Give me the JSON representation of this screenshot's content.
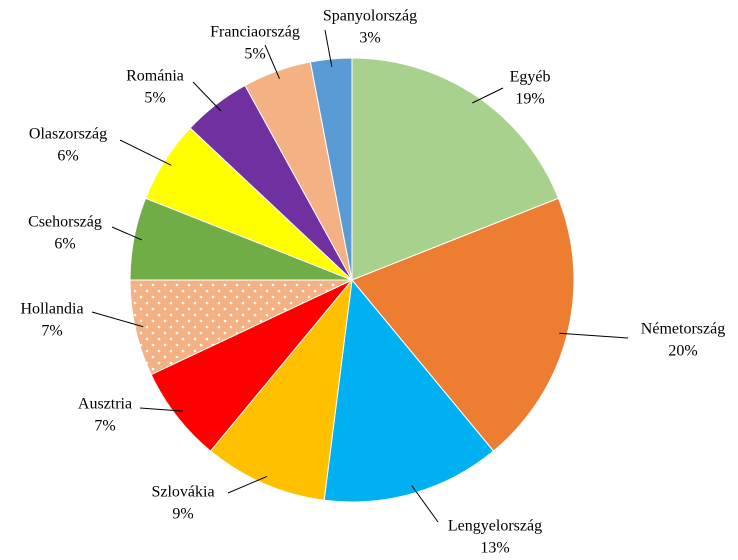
{
  "chart_data": {
    "type": "pie",
    "categories": [
      "Egyéb",
      "Németország",
      "Lengyelország",
      "Szlovákia",
      "Ausztria",
      "Hollandia",
      "Csehország",
      "Olaszország",
      "Románia",
      "Franciaország",
      "Spanyolország"
    ],
    "values": [
      19,
      20,
      13,
      9,
      7,
      7,
      6,
      6,
      5,
      5,
      3
    ],
    "value_labels": [
      "19%",
      "20%",
      "13%",
      "9%",
      "7%",
      "7%",
      "6%",
      "6%",
      "5%",
      "5%",
      "3%"
    ],
    "colors": [
      "#a9d18e",
      "#ed7d31",
      "#00b0f0",
      "#ffc000",
      "#ff0000",
      "#f4b183",
      "#70ad47",
      "#ffff00",
      "#7030a0",
      "#f4b183",
      "#5b9bd5"
    ],
    "patterns": [
      null,
      null,
      null,
      null,
      null,
      "dots",
      null,
      null,
      null,
      null,
      null
    ]
  }
}
